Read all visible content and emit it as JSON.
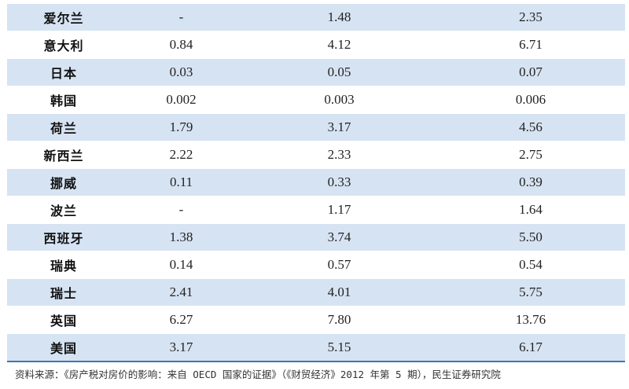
{
  "table": {
    "rows": [
      {
        "country": "爱尔兰",
        "v1": "-",
        "v2": "1.48",
        "v3": "2.35"
      },
      {
        "country": "意大利",
        "v1": "0.84",
        "v2": "4.12",
        "v3": "6.71"
      },
      {
        "country": "日本",
        "v1": "0.03",
        "v2": "0.05",
        "v3": "0.07"
      },
      {
        "country": "韩国",
        "v1": "0.002",
        "v2": "0.003",
        "v3": "0.006"
      },
      {
        "country": "荷兰",
        "v1": "1.79",
        "v2": "3.17",
        "v3": "4.56"
      },
      {
        "country": "新西兰",
        "v1": "2.22",
        "v2": "2.33",
        "v3": "2.75"
      },
      {
        "country": "挪威",
        "v1": "0.11",
        "v2": "0.33",
        "v3": "0.39"
      },
      {
        "country": "波兰",
        "v1": "-",
        "v2": "1.17",
        "v3": "1.64"
      },
      {
        "country": "西班牙",
        "v1": "1.38",
        "v2": "3.74",
        "v3": "5.50"
      },
      {
        "country": "瑞典",
        "v1": "0.14",
        "v2": "0.57",
        "v3": "0.54"
      },
      {
        "country": "瑞士",
        "v1": "2.41",
        "v2": "4.01",
        "v3": "5.75"
      },
      {
        "country": "英国",
        "v1": "6.27",
        "v2": "7.80",
        "v3": "13.76"
      },
      {
        "country": "美国",
        "v1": "3.17",
        "v2": "5.15",
        "v3": "6.17"
      }
    ]
  },
  "source_note": "资料来源：《房产税对房价的影响：来自 OECD 国家的证据》（《财贸经济》2012 年第 5 期），民生证券研究院",
  "colors": {
    "stripe": "#d6e3f2",
    "bottom_rule": "#3f77b0"
  }
}
